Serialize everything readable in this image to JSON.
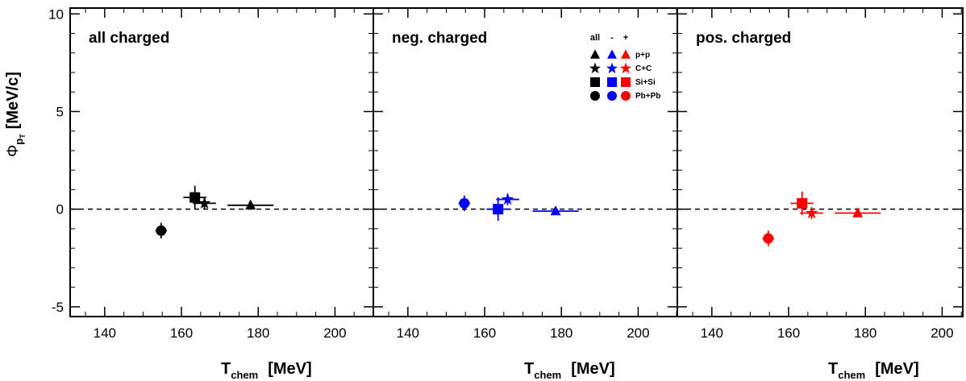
{
  "chart_data": [
    {
      "type": "scatter",
      "title": "all charged",
      "xlabel": "T",
      "xlabel_sub": "chem",
      "xlabel_unit": "[MeV]",
      "ylabel": "Φ",
      "ylabel_sub": "p",
      "ylabel_subsub": "T",
      "ylabel_unit": "[MeV/c]",
      "xlim": [
        131,
        210
      ],
      "ylim": [
        -5.5,
        10.3
      ],
      "xticks": [
        140,
        160,
        180,
        200
      ],
      "yticks": [
        -5,
        0,
        5,
        10
      ],
      "reference_line_y": 0,
      "color": "#000000",
      "series": [
        {
          "name": "p+p",
          "marker": "triangle",
          "x": 178,
          "y": 0.2,
          "xerr": 6,
          "yerr": 0.2
        },
        {
          "name": "C+C",
          "marker": "star",
          "x": 166,
          "y": 0.3,
          "xerr": 3,
          "yerr": 0.3
        },
        {
          "name": "Si+Si",
          "marker": "square",
          "x": 163.5,
          "y": 0.6,
          "xerr": 3,
          "yerr": 0.6
        },
        {
          "name": "Pb+Pb",
          "marker": "circle",
          "x": 154.7,
          "y": -1.1,
          "xerr": 1.5,
          "yerr": 0.4
        }
      ]
    },
    {
      "type": "scatter",
      "title": "neg. charged",
      "xlabel": "T",
      "xlabel_sub": "chem",
      "xlabel_unit": "[MeV]",
      "xlim": [
        131,
        210
      ],
      "ylim": [
        -5.5,
        10.3
      ],
      "xticks": [
        140,
        160,
        180,
        200
      ],
      "yticks": [
        -5,
        0,
        5,
        10
      ],
      "reference_line_y": 0,
      "color": "#0000ff",
      "series": [
        {
          "name": "p+p",
          "marker": "triangle",
          "x": 178.5,
          "y": -0.1,
          "xerr": 6,
          "yerr": 0.2
        },
        {
          "name": "C+C",
          "marker": "star",
          "x": 166,
          "y": 0.5,
          "xerr": 3,
          "yerr": 0.3
        },
        {
          "name": "Si+Si",
          "marker": "square",
          "x": 163.5,
          "y": 0.0,
          "xerr": 3,
          "yerr": 0.6
        },
        {
          "name": "Pb+Pb",
          "marker": "circle",
          "x": 154.7,
          "y": 0.3,
          "xerr": 1.5,
          "yerr": 0.4
        }
      ]
    },
    {
      "type": "scatter",
      "title": "pos. charged",
      "xlabel": "T",
      "xlabel_sub": "chem",
      "xlabel_unit": "[MeV]",
      "xlim": [
        131,
        210
      ],
      "ylim": [
        -5.5,
        10.3
      ],
      "xticks": [
        140,
        160,
        180,
        200
      ],
      "yticks": [
        -5,
        0,
        5,
        10
      ],
      "reference_line_y": 0,
      "color": "#ff0000",
      "series": [
        {
          "name": "p+p",
          "marker": "triangle",
          "x": 178,
          "y": -0.2,
          "xerr": 6,
          "yerr": 0.2
        },
        {
          "name": "C+C",
          "marker": "star",
          "x": 166,
          "y": -0.2,
          "xerr": 3,
          "yerr": 0.3
        },
        {
          "name": "Si+Si",
          "marker": "square",
          "x": 163.5,
          "y": 0.3,
          "xerr": 3,
          "yerr": 0.6
        },
        {
          "name": "Pb+Pb",
          "marker": "circle",
          "x": 154.7,
          "y": -1.5,
          "xerr": 1.5,
          "yerr": 0.4
        }
      ]
    }
  ],
  "legend": {
    "placement": "top-right of middle panel",
    "columns": [
      "all",
      "-",
      "+"
    ],
    "column_colors": [
      "#000000",
      "#0000ff",
      "#ff0000"
    ],
    "rows": [
      {
        "marker": "triangle",
        "label": "p+p"
      },
      {
        "marker": "star",
        "label": "C+C"
      },
      {
        "marker": "square",
        "label": "Si+Si"
      },
      {
        "marker": "circle",
        "label": "Pb+Pb"
      }
    ]
  }
}
